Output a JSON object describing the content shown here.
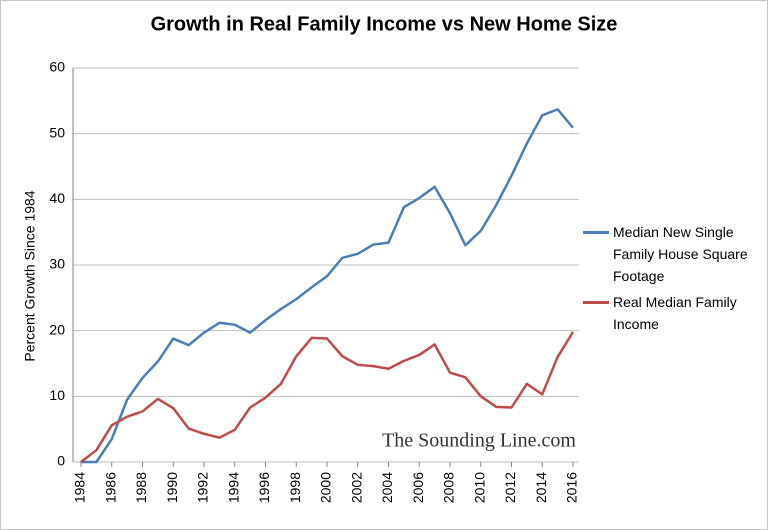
{
  "chart_data": {
    "type": "line",
    "title": "Growth in Real Family Income vs New Home Size",
    "y_label": "Percent Growth Since 1984",
    "watermark": "The Sounding Line.com",
    "x": [
      1984,
      1985,
      1986,
      1987,
      1988,
      1989,
      1990,
      1991,
      1992,
      1993,
      1994,
      1995,
      1996,
      1997,
      1998,
      1999,
      2000,
      2001,
      2002,
      2003,
      2004,
      2005,
      2006,
      2007,
      2008,
      2009,
      2010,
      2011,
      2012,
      2013,
      2014,
      2015,
      2016
    ],
    "xlim": [
      1984,
      2016
    ],
    "xticks": [
      1984,
      1986,
      1988,
      1990,
      1992,
      1994,
      1996,
      1998,
      2000,
      2002,
      2004,
      2006,
      2008,
      2010,
      2012,
      2014,
      2016
    ],
    "ylim": [
      0,
      60
    ],
    "yticks": [
      0,
      10,
      20,
      30,
      40,
      50,
      60
    ],
    "grid": true,
    "legend": "right",
    "series": [
      {
        "name": "Median New Single Family House Square Footage",
        "color": "#4a7ebb",
        "values": [
          0,
          0,
          3.5,
          9.5,
          12.8,
          15.3,
          18.8,
          17.8,
          19.7,
          21.2,
          20.9,
          19.7,
          21.6,
          23.3,
          24.8,
          26.6,
          28.3,
          31.1,
          31.7,
          33.1,
          33.4,
          38.8,
          40.2,
          41.9,
          37.9,
          33.0,
          35.2,
          39.1,
          43.6,
          48.5,
          52.8,
          53.7,
          50.9
        ]
      },
      {
        "name": "Real Median Family Income",
        "color": "#be4b48",
        "values": [
          0,
          1.8,
          5.6,
          6.9,
          7.7,
          9.6,
          8.2,
          5.1,
          4.3,
          3.7,
          4.9,
          8.3,
          9.8,
          11.9,
          16.1,
          18.9,
          18.8,
          16.1,
          14.8,
          14.6,
          14.2,
          15.4,
          16.3,
          17.9,
          13.6,
          12.9,
          10.0,
          8.4,
          8.3,
          11.9,
          10.3,
          16.0,
          19.8
        ]
      }
    ]
  }
}
